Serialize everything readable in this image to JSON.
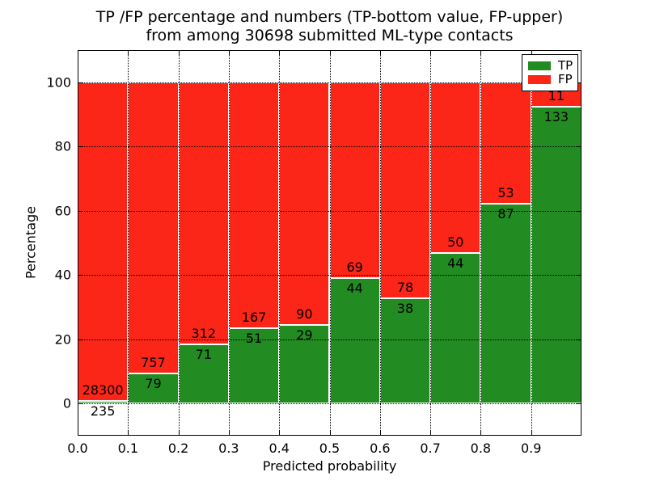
{
  "title": {
    "line1": "TP /FP percentage and numbers (TP-bottom value, FP-upper)",
    "line2": "from among 30698 submitted ML-type contacts"
  },
  "chart_data": {
    "type": "bar",
    "stacked": true,
    "title_line1": "TP /FP percentage and numbers (TP-bottom value, FP-upper)",
    "title_line2": "from among 30698 submitted ML-type contacts",
    "total_submitted": 30698,
    "xlabel": "Predicted probability",
    "ylabel": "Percentage",
    "xlim": [
      0,
      1
    ],
    "ylim": [
      -10,
      110
    ],
    "grid": "dotted-black",
    "xticks": [
      "0.0",
      "0.1",
      "0.2",
      "0.3",
      "0.4",
      "0.5",
      "0.6",
      "0.7",
      "0.8",
      "0.9"
    ],
    "yticks": [
      "0",
      "20",
      "40",
      "60",
      "80",
      "100"
    ],
    "ytick_values": [
      0,
      20,
      40,
      60,
      80,
      100
    ],
    "categories": [
      "0.0-0.1",
      "0.1-0.2",
      "0.2-0.3",
      "0.3-0.4",
      "0.4-0.5",
      "0.5-0.6",
      "0.6-0.7",
      "0.7-0.8",
      "0.8-0.9",
      "0.9-1.0"
    ],
    "series": [
      {
        "name": "TP",
        "color": "#228B22",
        "counts": [
          235,
          79,
          71,
          51,
          29,
          44,
          38,
          44,
          87,
          133
        ]
      },
      {
        "name": "FP",
        "color": "#FB2518",
        "counts": [
          28300,
          757,
          312,
          167,
          90,
          69,
          78,
          50,
          53,
          11
        ]
      }
    ],
    "bar_label_note": "TP count shown below segment boundary, FP count above; heights are TP/(TP+FP) and FP/(TP+FP) percentages",
    "legend": {
      "position": "upper right",
      "items": [
        {
          "label": "TP",
          "color": "#228B22"
        },
        {
          "label": "FP",
          "color": "#FB2518"
        }
      ]
    }
  }
}
